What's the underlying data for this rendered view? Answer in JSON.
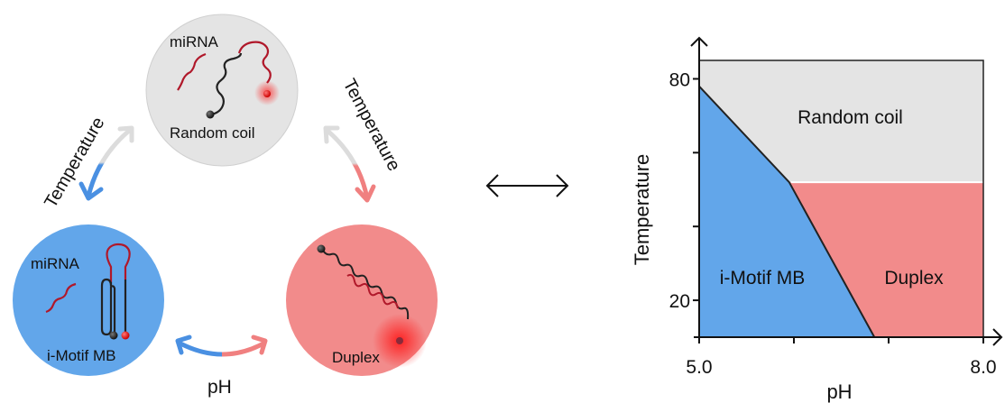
{
  "cycle": {
    "random_coil": {
      "miRNA_label": "miRNA",
      "label": "Random coil",
      "color": "#e4e4e4"
    },
    "imotif": {
      "miRNA_label": "miRNA",
      "label": "i-Motif MB",
      "color": "#62a6ea"
    },
    "duplex": {
      "label": "Duplex",
      "color": "#f28b8b"
    },
    "left_arrow_label": "Temperature",
    "right_arrow_label": "Temperature",
    "bottom_arrow_label": "pH",
    "strand_color": "#b0182a"
  },
  "equivalence_arrow": "double-headed-arrow",
  "phase_diagram": {
    "xlabel": "pH",
    "ylabel": "Temperature",
    "x_ticks": [
      5.0,
      6.0,
      7.0,
      8.0
    ],
    "x_tick_labels": [
      "5.0",
      "8.0"
    ],
    "y_ticks": [
      20,
      40,
      60,
      80
    ],
    "y_tick_labels": [
      "80",
      "20"
    ],
    "xlim": [
      5.0,
      8.0
    ],
    "ylim": [
      10,
      85
    ],
    "boundary": [
      [
        5.0,
        78
      ],
      [
        5.95,
        52
      ],
      [
        6.85,
        10
      ]
    ],
    "coil_duplex_boundary_T": 52,
    "regions": [
      {
        "name": "Random coil",
        "color": "#e4e4e4"
      },
      {
        "name": "i-Motif MB",
        "color": "#62a6ea"
      },
      {
        "name": "Duplex",
        "color": "#f28b8b"
      }
    ]
  }
}
